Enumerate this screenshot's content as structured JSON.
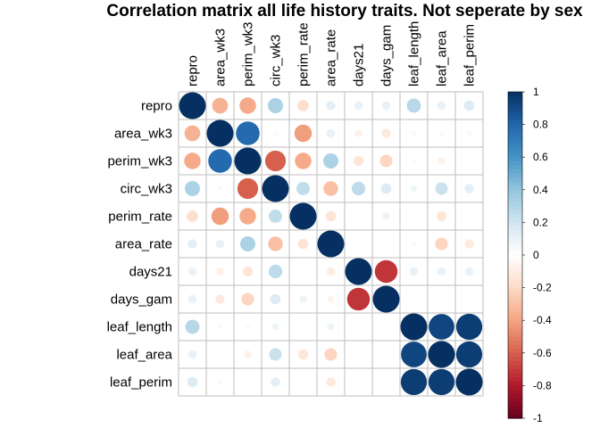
{
  "chart_data": {
    "type": "heatmap",
    "title": "Correlation matrix all life history traits. Not seperate by sex",
    "variables": [
      "repro",
      "area_wk3",
      "perim_wk3",
      "circ_wk3",
      "perim_rate",
      "area_rate",
      "days21",
      "days_gam",
      "leaf_length",
      "leaf_area",
      "leaf_perim"
    ],
    "matrix": [
      [
        1.0,
        -0.35,
        -0.38,
        0.32,
        -0.18,
        0.12,
        0.1,
        0.1,
        0.28,
        0.1,
        0.15
      ],
      [
        -0.35,
        1.0,
        0.78,
        0.03,
        -0.42,
        0.1,
        -0.08,
        -0.12,
        0.04,
        0.03,
        0.04
      ],
      [
        -0.38,
        0.78,
        1.0,
        -0.6,
        -0.38,
        0.32,
        -0.14,
        -0.22,
        0.03,
        -0.08,
        0.02
      ],
      [
        0.32,
        0.03,
        -0.6,
        1.0,
        0.25,
        -0.3,
        0.26,
        0.15,
        0.07,
        0.22,
        0.12
      ],
      [
        -0.18,
        -0.42,
        -0.38,
        0.25,
        1.0,
        -0.15,
        0.0,
        0.08,
        0.0,
        -0.14,
        0.0
      ],
      [
        0.12,
        0.1,
        0.32,
        -0.3,
        -0.15,
        1.0,
        0.0,
        0.0,
        0.03,
        -0.22,
        -0.12
      ],
      [
        0.1,
        -0.08,
        -0.14,
        0.26,
        0.0,
        -0.1,
        1.0,
        -0.72,
        0.1,
        0.1,
        0.1
      ],
      [
        0.1,
        -0.12,
        -0.22,
        0.15,
        0.08,
        -0.06,
        -0.72,
        1.0,
        0.0,
        0.0,
        0.0
      ],
      [
        0.28,
        0.04,
        0.03,
        0.07,
        0.0,
        0.08,
        0.0,
        0.0,
        1.0,
        0.92,
        0.95
      ],
      [
        0.1,
        0.0,
        -0.08,
        0.22,
        -0.14,
        -0.22,
        0.0,
        0.0,
        0.92,
        1.0,
        0.95
      ],
      [
        0.15,
        0.04,
        0.02,
        0.12,
        0.0,
        -0.12,
        0.0,
        0.0,
        0.95,
        0.95,
        1.0
      ]
    ],
    "colorbar": {
      "range": [
        -1,
        1
      ],
      "ticks": [
        "1",
        "0.8",
        "0.6",
        "0.4",
        "0.2",
        "0",
        "-0.2",
        "-0.4",
        "-0.6",
        "-0.8",
        "-1"
      ]
    },
    "color_stops": [
      "#67001f",
      "#b2182b",
      "#d6604d",
      "#f4a582",
      "#fddbc7",
      "#ffffff",
      "#d1e5f0",
      "#92c5de",
      "#4393c3",
      "#2166ac",
      "#053061"
    ]
  }
}
